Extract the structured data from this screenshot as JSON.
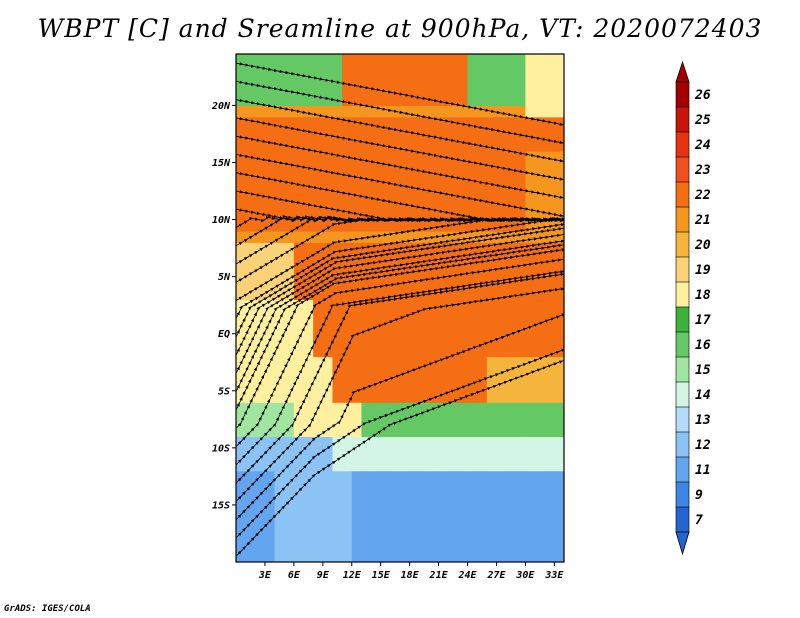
{
  "title": "WBPT [C] and Sreamline at 900hPa, VT: 2020072403",
  "credit": "GrADS: IGES/COLA",
  "map": {
    "lat_labels": [
      "20N",
      "15N",
      "10N",
      "5N",
      "EQ",
      "5S",
      "10S",
      "15S"
    ],
    "lon_labels": [
      "3E",
      "6E",
      "9E",
      "12E",
      "15E",
      "18E",
      "21E",
      "24E",
      "27E",
      "30E",
      "33E"
    ],
    "lon_range": [
      0,
      34
    ],
    "lat_range": [
      -20,
      24.5
    ]
  },
  "colorbar": {
    "labels": [
      "26",
      "25",
      "24",
      "23",
      "22",
      "21",
      "20",
      "19",
      "18",
      "17",
      "16",
      "15",
      "14",
      "13",
      "12",
      "11",
      "9",
      "7"
    ],
    "colors": [
      "#a50000",
      "#c8140a",
      "#e6320f",
      "#f0501e",
      "#f56e14",
      "#f5961e",
      "#f5b43c",
      "#fad278",
      "#fff0a0",
      "#3cb43c",
      "#64c864",
      "#a0e6a0",
      "#d2f5e6",
      "#b4dcfa",
      "#8cc3f5",
      "#64a5f0",
      "#3c87e6",
      "#2364d2"
    ],
    "top_arrow_color": "#a50000",
    "bottom_arrow_color": "#2364d2"
  }
}
